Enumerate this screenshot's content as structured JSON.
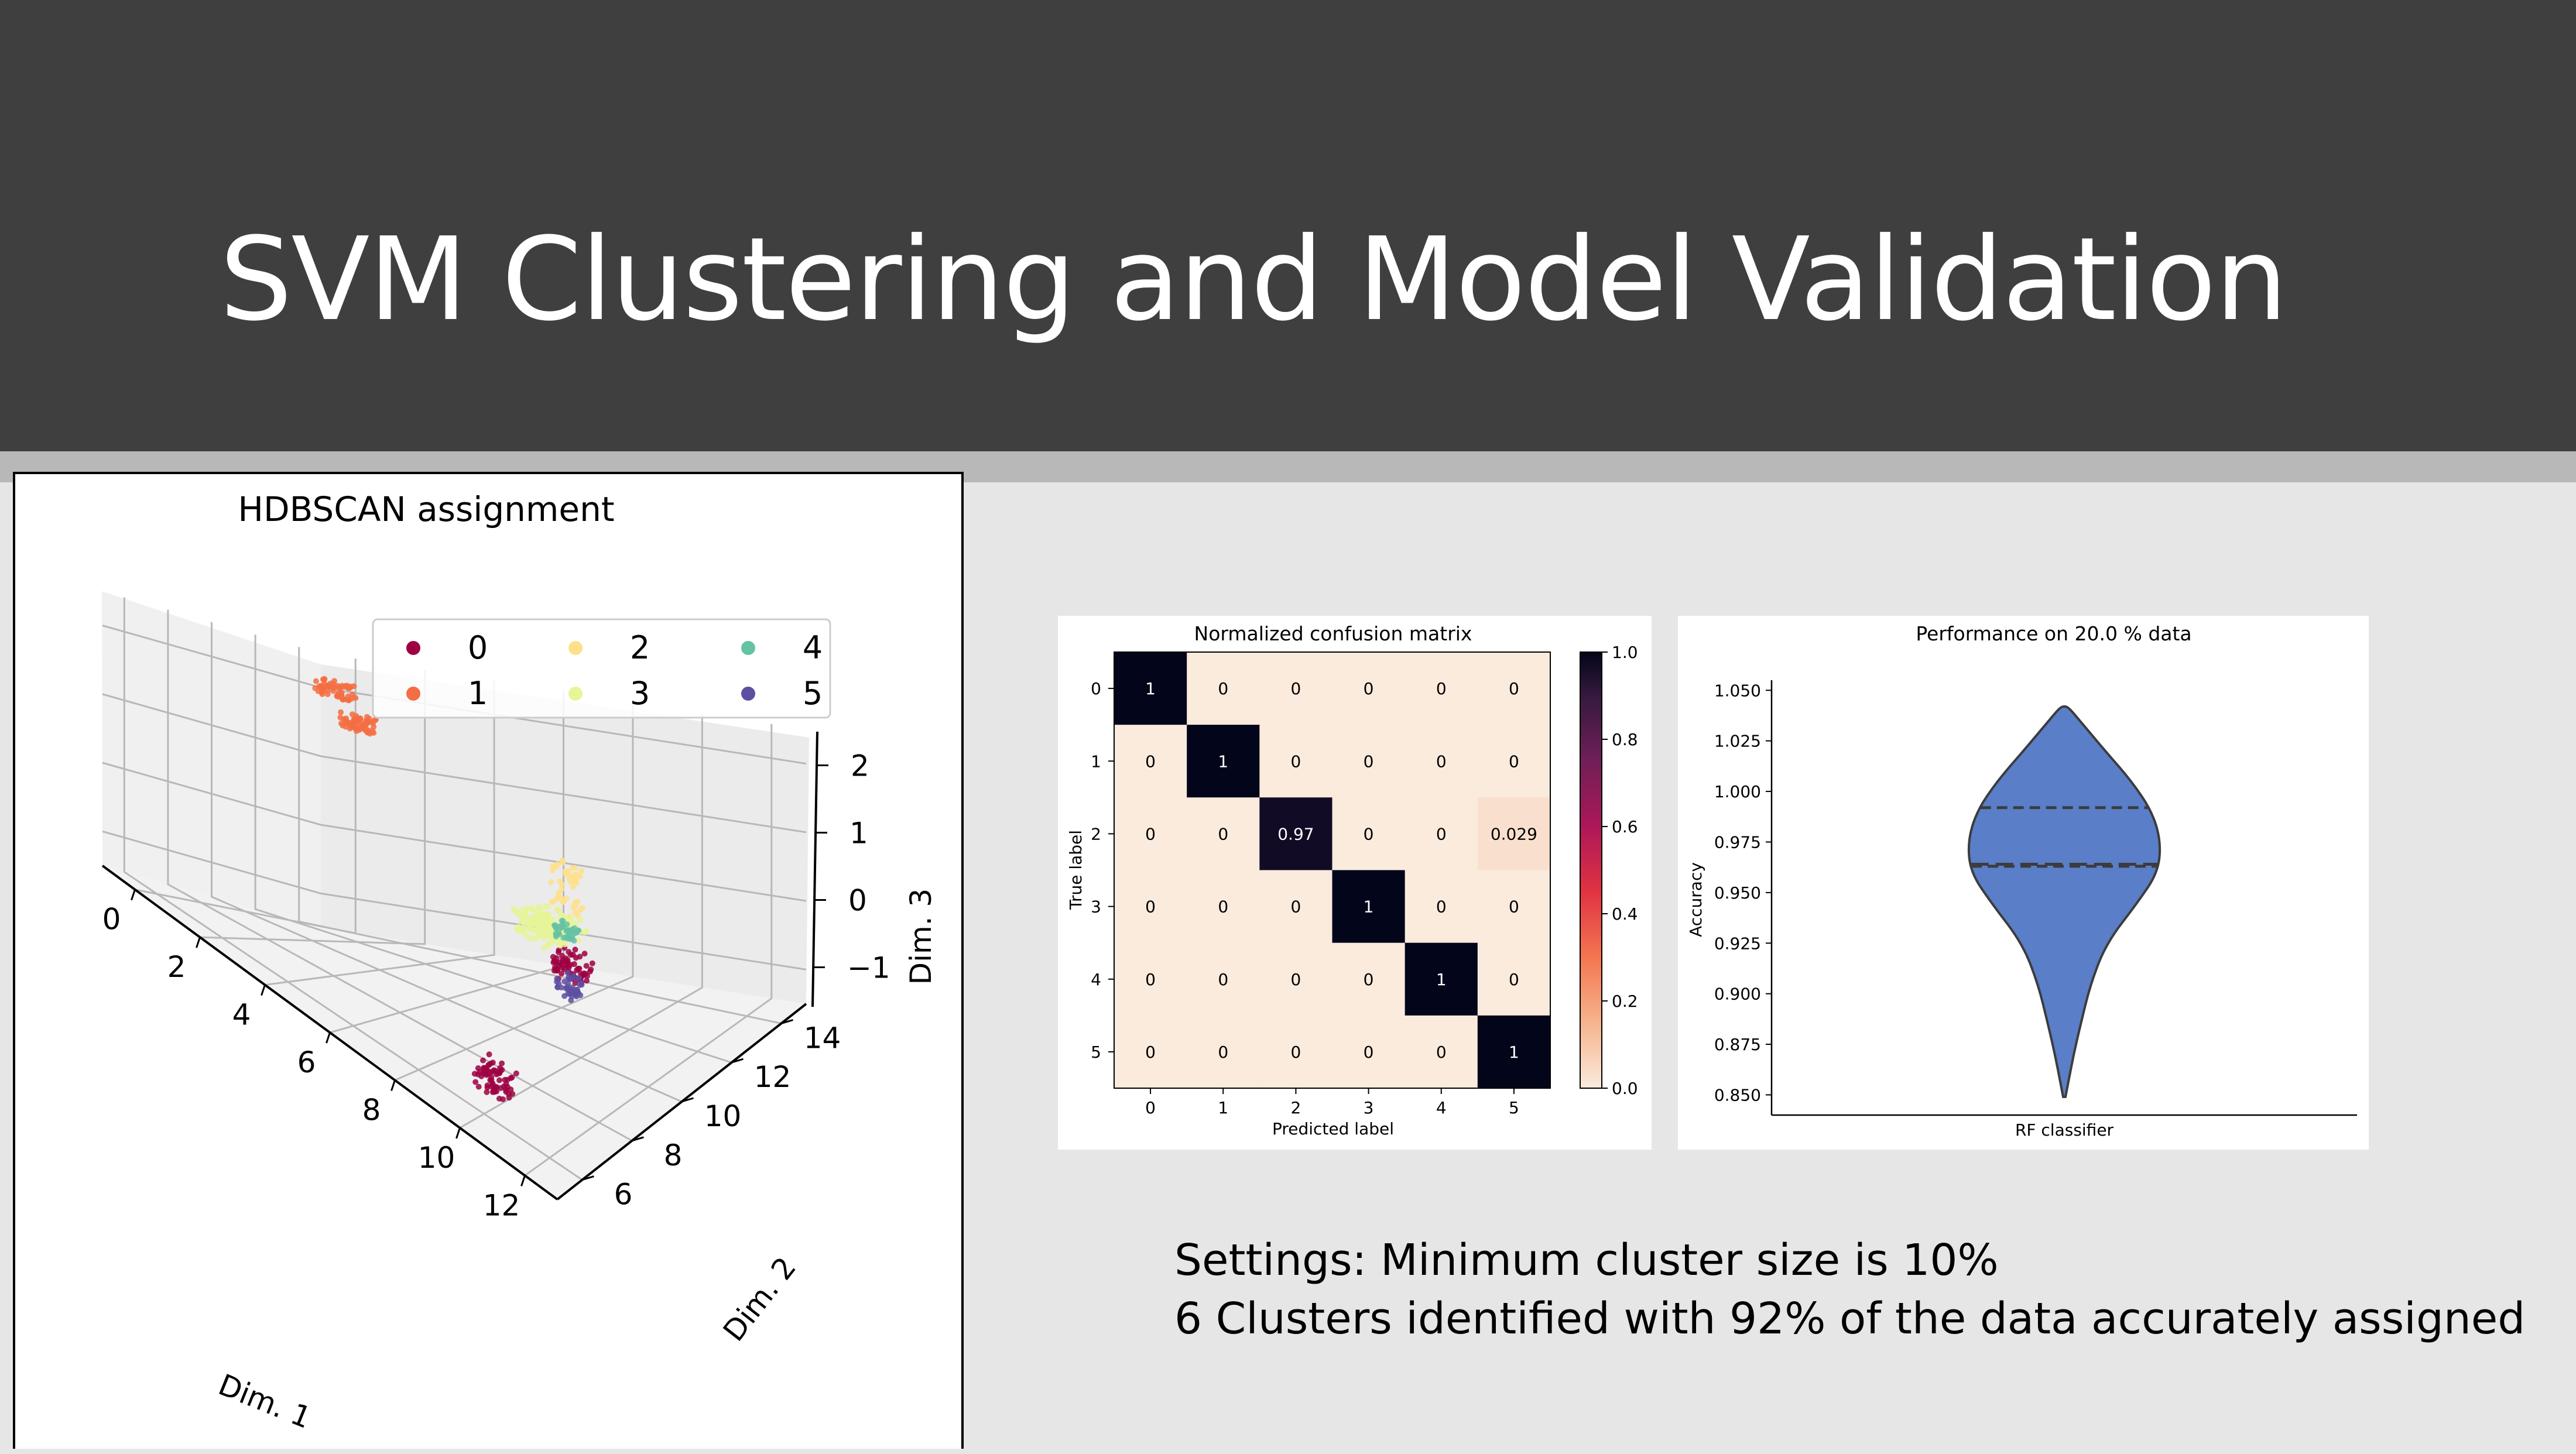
{
  "slide": {
    "title": "SVM Clustering and Model Validation",
    "notes": [
      "Settings: Minimum cluster size is 10%",
      "6 Clusters identified with 92% of the data accurately assigned"
    ]
  },
  "colors": {
    "header_bg": "#3f3f3f",
    "stripe": "#b8b8b8",
    "slide_bg": "#e6e6e6",
    "violin_fill": "#5a7ec8",
    "clusters": [
      "#9e0142",
      "#f46d43",
      "#fee08b",
      "#e6f598",
      "#66c2a5",
      "#5e4fa2"
    ]
  },
  "chart_data": [
    {
      "type": "scatter",
      "title": "HDBSCAN assignment",
      "xlabel": "Dim. 1",
      "ylabel": "Dim. 2",
      "zlabel": "Dim. 3",
      "x_ticks": [
        "0",
        "2",
        "4",
        "6",
        "8",
        "10",
        "12"
      ],
      "y_ticks": [
        "6",
        "8",
        "10",
        "12",
        "14"
      ],
      "z_ticks": [
        "−1",
        "0",
        "1",
        "2"
      ],
      "xlim": [
        -1,
        13
      ],
      "ylim": [
        5,
        15
      ],
      "zlim": [
        -1.5,
        2.5
      ],
      "legend_position": "top-right",
      "legend": [
        "0",
        "1",
        "2",
        "3",
        "4",
        "5"
      ],
      "series": [
        {
          "name": "0",
          "points": [
            [
              9.6,
              7.0,
              -1.3
            ],
            [
              11.4,
              7.7,
              0.7
            ]
          ]
        },
        {
          "name": "1",
          "points": [
            [
              0.3,
              13.6,
              2.0
            ],
            [
              1.3,
              13.2,
              1.6
            ]
          ]
        },
        {
          "name": "2",
          "points": [
            [
              9.8,
              9.7,
              1.0
            ]
          ]
        },
        {
          "name": "3",
          "points": [
            [
              9.5,
              9.0,
              0.5
            ],
            [
              10.0,
              9.1,
              0.6
            ]
          ]
        },
        {
          "name": "4",
          "points": [
            [
              10.3,
              9.0,
              0.6
            ]
          ]
        },
        {
          "name": "5",
          "points": [
            [
              11.1,
              8.1,
              0.2
            ]
          ]
        }
      ]
    },
    {
      "type": "heatmap",
      "title": "Normalized confusion matrix",
      "xlabel": "Predicted label",
      "ylabel": "True label",
      "categories": [
        "0",
        "1",
        "2",
        "3",
        "4",
        "5"
      ],
      "values": [
        [
          1,
          0,
          0,
          0,
          0,
          0
        ],
        [
          0,
          1,
          0,
          0,
          0,
          0
        ],
        [
          0,
          0,
          0.97,
          0,
          0,
          0.029
        ],
        [
          0,
          0,
          0,
          1,
          0,
          0
        ],
        [
          0,
          0,
          0,
          0,
          1,
          0
        ],
        [
          0,
          0,
          0,
          0,
          0,
          1
        ]
      ],
      "cell_labels": [
        [
          "1",
          "0",
          "0",
          "0",
          "0",
          "0"
        ],
        [
          "0",
          "1",
          "0",
          "0",
          "0",
          "0"
        ],
        [
          "0",
          "0",
          "0.97",
          "0",
          "0",
          "0.029"
        ],
        [
          "0",
          "0",
          "0",
          "1",
          "0",
          "0"
        ],
        [
          "0",
          "0",
          "0",
          "0",
          "1",
          "0"
        ],
        [
          "0",
          "0",
          "0",
          "0",
          "0",
          "1"
        ]
      ],
      "colorbar": {
        "range": [
          0,
          1
        ],
        "ticks": [
          "0.0",
          "0.2",
          "0.4",
          "0.6",
          "0.8",
          "1.0"
        ],
        "colormap": "rocket_r"
      }
    },
    {
      "type": "violin",
      "title": "Performance on 20.0 % data",
      "xlabel": "RF classifier",
      "ylabel": "Accuracy",
      "categories": [
        "RF classifier"
      ],
      "ylim": [
        0.84,
        1.055
      ],
      "y_ticks": [
        "0.850",
        "0.875",
        "0.900",
        "0.925",
        "0.950",
        "0.975",
        "1.000",
        "1.025",
        "1.050"
      ],
      "y_max": 1.042,
      "y_min": 0.849,
      "quartiles": {
        "q1": 0.963,
        "median": 0.964,
        "q3": 0.992
      }
    }
  ]
}
